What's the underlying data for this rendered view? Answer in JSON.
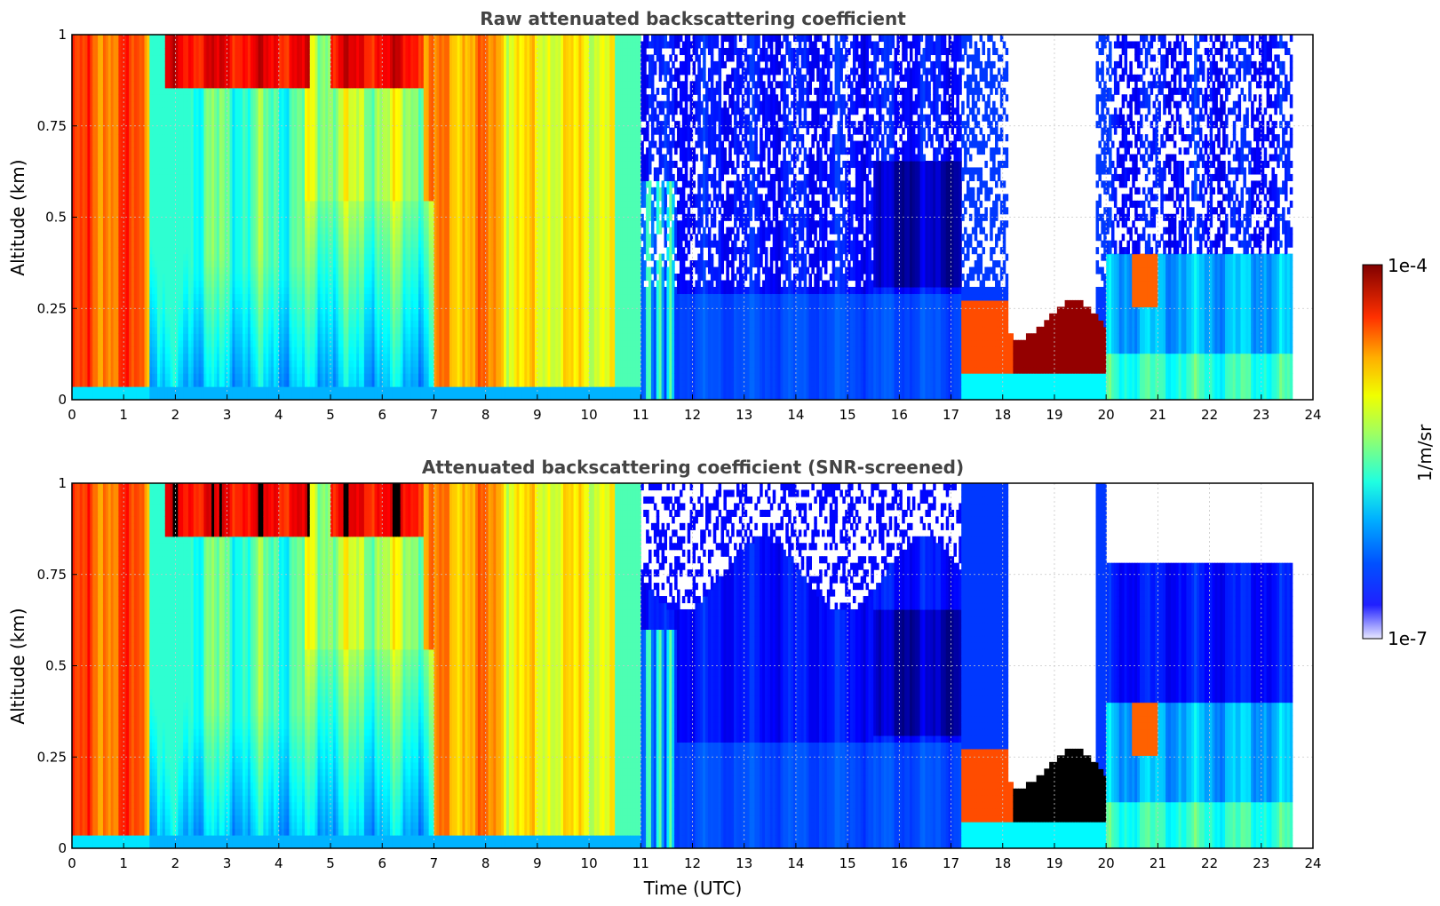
{
  "chart_data": [
    {
      "type": "heatmap",
      "title": "Raw attenuated backscattering coefficient",
      "ylabel": "Altitude (km)",
      "xlabel": "",
      "xlim": [
        0,
        24
      ],
      "ylim": [
        0,
        1
      ],
      "xticks": [
        "0",
        "1",
        "2",
        "3",
        "4",
        "5",
        "6",
        "7",
        "8",
        "9",
        "10",
        "11",
        "12",
        "13",
        "14",
        "15",
        "16",
        "17",
        "18",
        "19",
        "20",
        "21",
        "22",
        "23",
        "24"
      ],
      "yticks": [
        "0",
        "0.25",
        "0.5",
        "0.75",
        "1"
      ],
      "grid": true,
      "data_end_time": 23.6,
      "description_regions": [
        {
          "time": [
            0,
            1.5
          ],
          "altitude": [
            0.03,
            1
          ],
          "level": "high"
        },
        {
          "time": [
            1.5,
            11
          ],
          "altitude": [
            0.03,
            1
          ],
          "level": "moderate-to-high, columnar"
        },
        {
          "time": [
            11,
            17.2
          ],
          "altitude": [
            0,
            1
          ],
          "level": "low, noisy above 0.3 km"
        },
        {
          "time": [
            17.2,
            20
          ],
          "altitude": [
            0,
            0.4
          ],
          "level": "cloud layer, saturated 18.2-20 h near 0.1-0.25 km"
        },
        {
          "time": [
            20,
            23.6
          ],
          "altitude": [
            0,
            0.4
          ],
          "level": "low-moderate"
        }
      ]
    },
    {
      "type": "heatmap",
      "title": "Attenuated backscattering coefficient (SNR-screened)",
      "ylabel": "Altitude (km)",
      "xlabel": "Time (UTC)",
      "xlim": [
        0,
        24
      ],
      "ylim": [
        0,
        1
      ],
      "xticks": [
        "0",
        "1",
        "2",
        "3",
        "4",
        "5",
        "6",
        "7",
        "8",
        "9",
        "10",
        "11",
        "12",
        "13",
        "14",
        "15",
        "16",
        "17",
        "18",
        "19",
        "20",
        "21",
        "22",
        "23",
        "24"
      ],
      "yticks": [
        "0",
        "0.25",
        "0.5",
        "0.75",
        "1"
      ],
      "grid": true,
      "data_end_time": 23.6,
      "saturated_color": "#000000"
    }
  ],
  "colorbar": {
    "min_label": "1e-7",
    "max_label": "1e-4",
    "unit_label": "1/m/sr",
    "scale": "log",
    "colormap": "jet",
    "low_color": "#e8e8ff"
  }
}
